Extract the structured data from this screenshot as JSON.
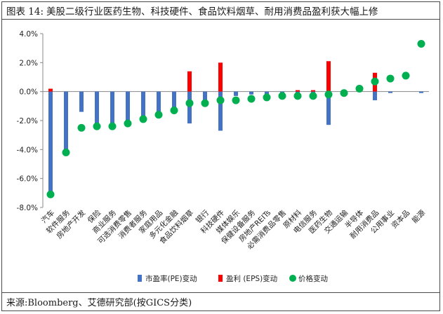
{
  "header": {
    "label": "图表 14:",
    "title": "美股二级行业医药生物、科技硬件、食品饮料烟草、耐用消费品盈利获大幅上修"
  },
  "footer": {
    "source": "来源:Bloomberg、艾德研究部(按GICS分类)"
  },
  "colors": {
    "pe": "#4472C4",
    "eps": "#FF0000",
    "price": "#00B050"
  },
  "chart_data": {
    "type": "bar",
    "ylim": [
      -8,
      4
    ],
    "yticks": [
      4,
      2,
      0,
      -2,
      -4,
      -6,
      -8
    ],
    "ytick_labels": [
      "4.0%",
      "2.0%",
      "0.0%",
      "-2.0%",
      "-4.0%",
      "-6.0%",
      "-8.0%"
    ],
    "categories": [
      "汽车",
      "软件服务",
      "房地产开发",
      "保险",
      "商业服务",
      "可选消费零售",
      "消费者服务",
      "家庭用品",
      "多元化金融",
      "食品饮料烟草",
      "银行",
      "科技硬件",
      "媒体娱乐",
      "保健设备服务",
      "房地产REITs",
      "必需消费品零售",
      "原材料",
      "电信服务",
      "医药生物",
      "交通运输",
      "半导体",
      "耐用消费品",
      "公用事业",
      "资本品",
      "能源"
    ],
    "series": [
      {
        "name": "市盈率(PE)变动",
        "type": "bar",
        "values": [
          -7.3,
          -4.3,
          -1.4,
          -2.4,
          -2.4,
          -2.3,
          -2.0,
          -1.6,
          -1.2,
          -2.2,
          -0.7,
          -2.7,
          -0.3,
          -0.2,
          -0.2,
          -0.1,
          -0.1,
          -0.1,
          -2.3,
          -0.1,
          0.0,
          -0.6,
          -0.1,
          0.0,
          -0.1
        ]
      },
      {
        "name": "盈利 (EPS)变动",
        "type": "bar",
        "values": [
          0.2,
          0.0,
          0.0,
          0.0,
          0.0,
          0.0,
          0.0,
          0.0,
          0.0,
          1.4,
          0.0,
          2.0,
          0.0,
          0.0,
          0.0,
          0.0,
          0.1,
          0.1,
          2.1,
          0.0,
          0.0,
          1.3,
          0.0,
          0.0,
          0.0
        ]
      },
      {
        "name": "价格变动",
        "type": "scatter",
        "values": [
          -7.1,
          -4.2,
          -2.5,
          -2.4,
          -2.4,
          -2.2,
          -1.9,
          -1.6,
          -1.3,
          -0.8,
          -0.8,
          -0.6,
          -0.6,
          -0.5,
          -0.4,
          -0.3,
          -0.3,
          -0.3,
          -0.2,
          -0.1,
          0.2,
          0.7,
          0.9,
          1.1,
          3.3
        ]
      }
    ],
    "legend": [
      "市盈率(PE)变动",
      "盈利 (EPS)变动",
      "价格变动"
    ],
    "legend_position": "bottom"
  }
}
